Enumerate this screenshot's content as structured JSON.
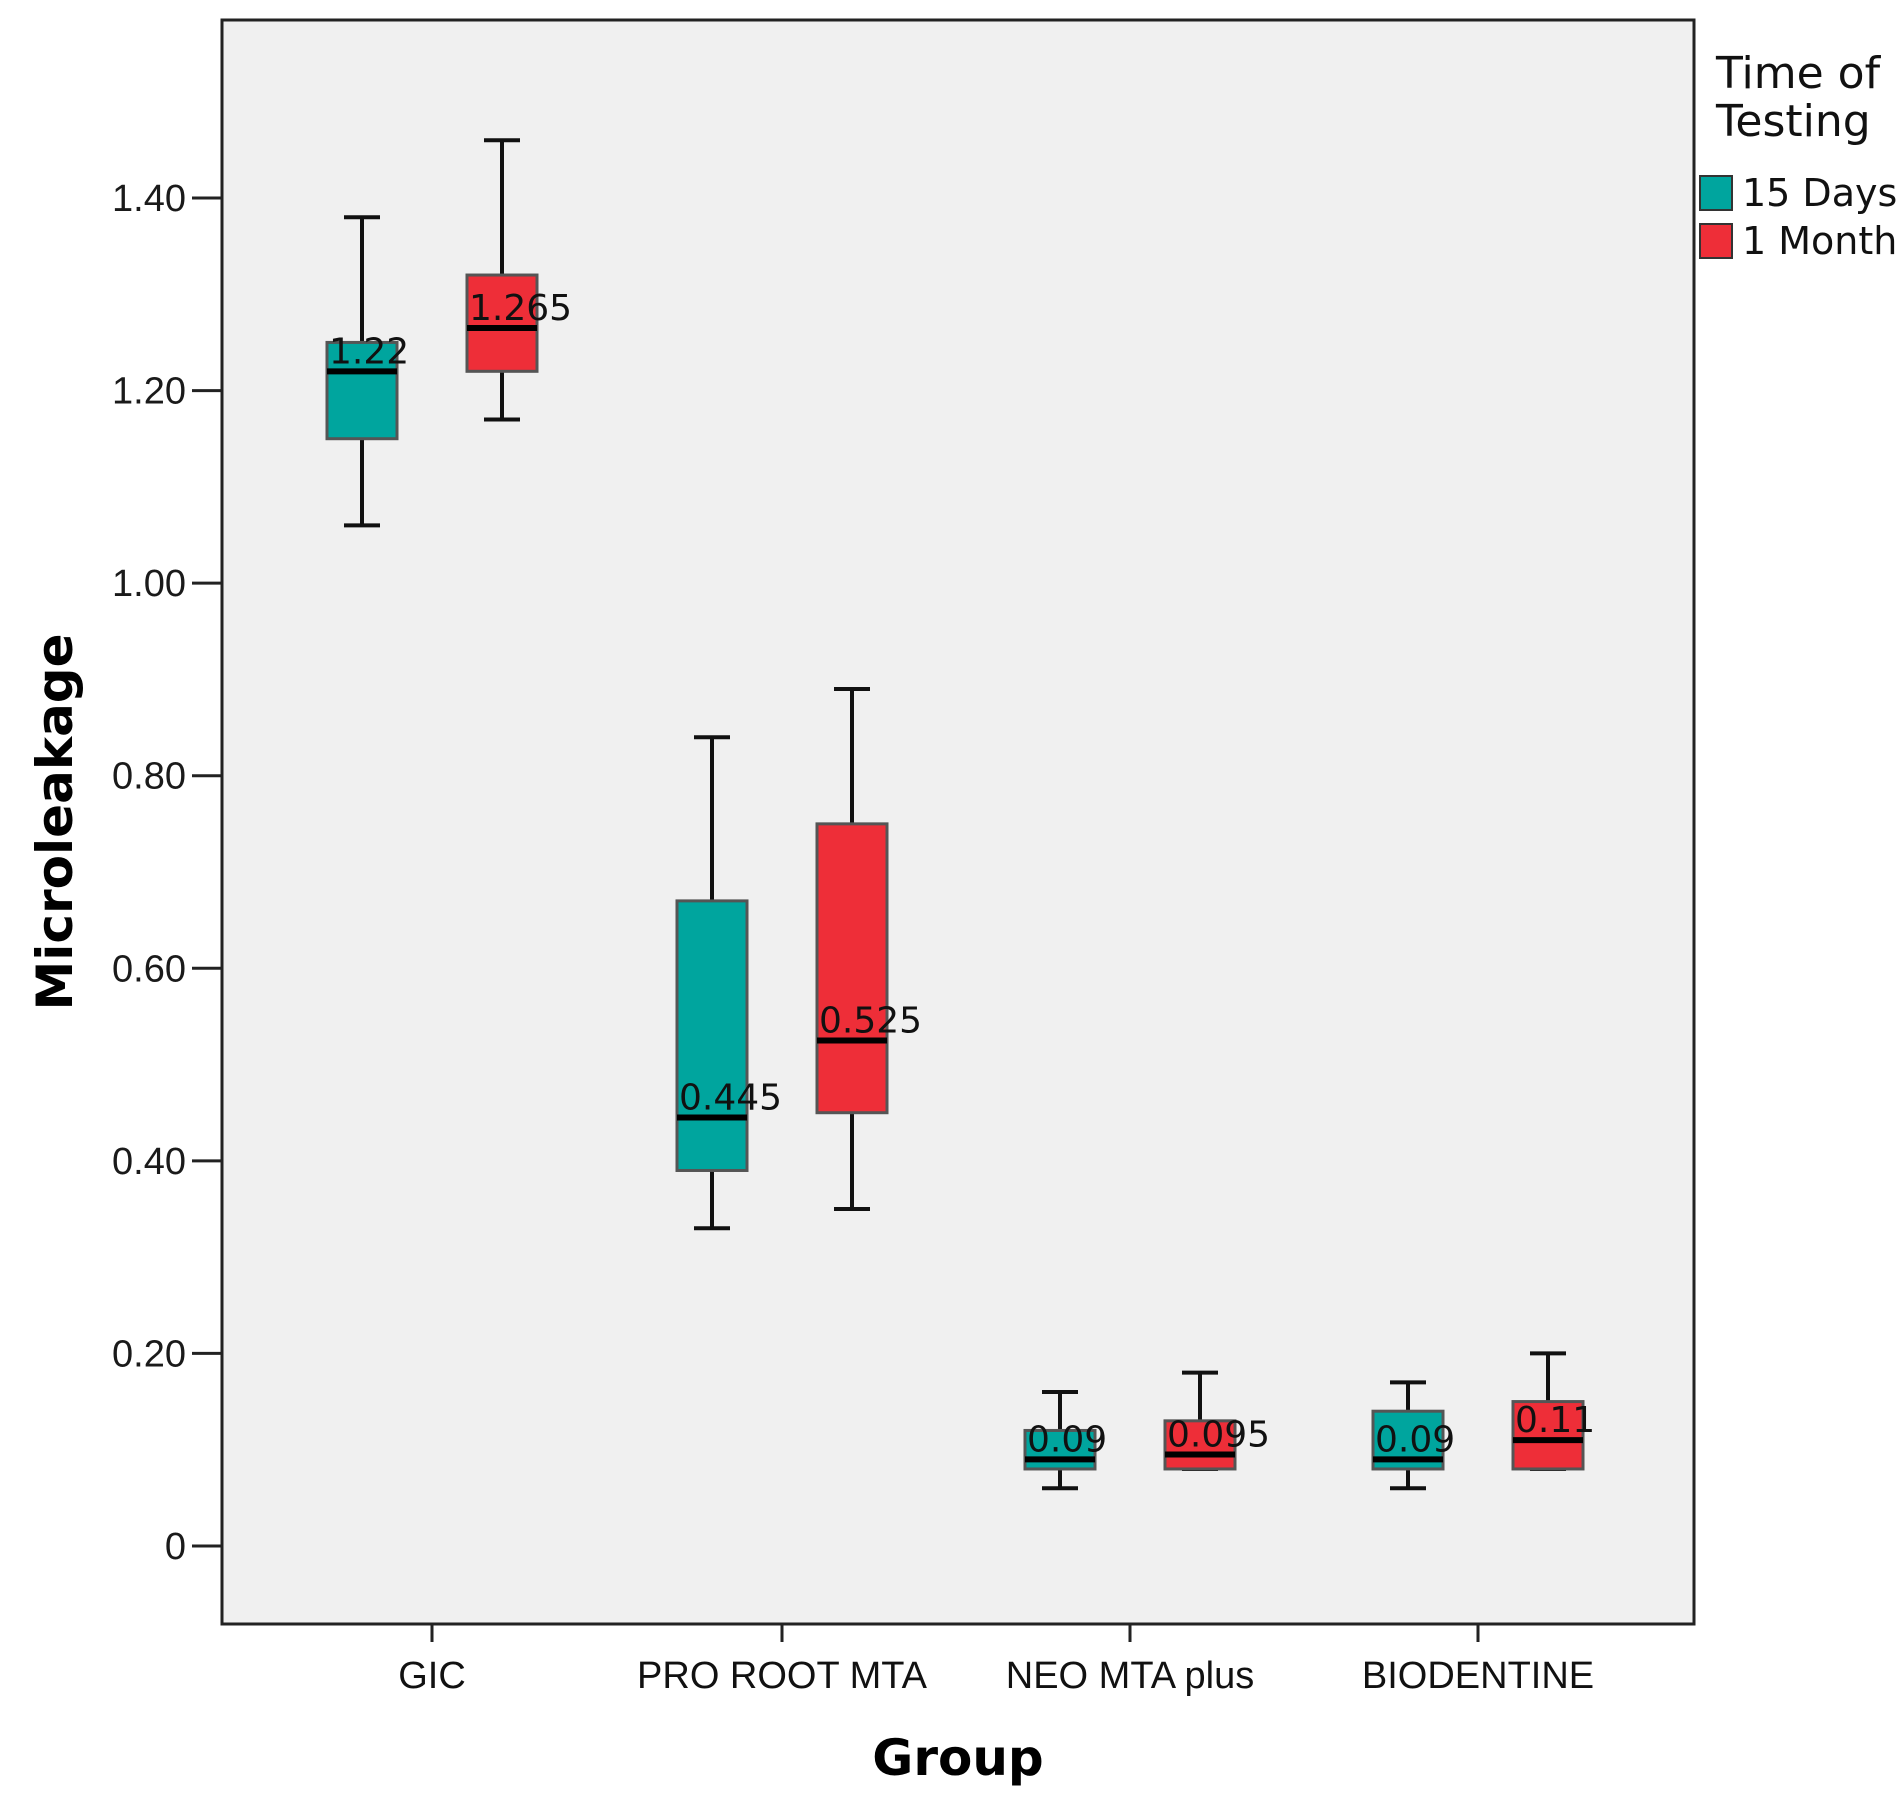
{
  "chart_data": {
    "type": "boxplot",
    "xlabel": "Group",
    "ylabel": "Microleakage",
    "ylim": [
      -0.08,
      1.58
    ],
    "yticks": [
      0,
      0.2,
      0.4,
      0.6,
      0.8,
      1.0,
      1.2,
      1.4
    ],
    "ytick_labels": [
      "0",
      "0.20",
      "0.40",
      "0.60",
      "0.80",
      "1.00",
      "1.20",
      "1.40"
    ],
    "categories": [
      "GIC",
      "PRO ROOT MTA",
      "NEO MTA plus",
      "BIODENTINE"
    ],
    "legend": {
      "title_lines": [
        "Time of",
        "Testing"
      ],
      "position": "right"
    },
    "series": [
      {
        "name": "15 Days",
        "color": "#00a59e",
        "boxes": [
          {
            "min": 1.06,
            "q1": 1.15,
            "median": 1.22,
            "q3": 1.25,
            "max": 1.38,
            "label": "1.22"
          },
          {
            "min": 0.33,
            "q1": 0.39,
            "median": 0.445,
            "q3": 0.67,
            "max": 0.84,
            "label": "0.445"
          },
          {
            "min": 0.06,
            "q1": 0.08,
            "median": 0.09,
            "q3": 0.12,
            "max": 0.16,
            "label": "0.09"
          },
          {
            "min": 0.06,
            "q1": 0.08,
            "median": 0.09,
            "q3": 0.14,
            "max": 0.17,
            "label": "0.09"
          }
        ]
      },
      {
        "name": "1 Month",
        "color": "#ee2e38",
        "boxes": [
          {
            "min": 1.17,
            "q1": 1.22,
            "median": 1.265,
            "q3": 1.32,
            "max": 1.46,
            "label": "1.265"
          },
          {
            "min": 0.35,
            "q1": 0.45,
            "median": 0.525,
            "q3": 0.75,
            "max": 0.89,
            "label": "0.525"
          },
          {
            "min": 0.08,
            "q1": 0.08,
            "median": 0.095,
            "q3": 0.13,
            "max": 0.18,
            "label": "0.095"
          },
          {
            "min": 0.08,
            "q1": 0.08,
            "median": 0.11,
            "q3": 0.15,
            "max": 0.2,
            "label": "0.11"
          }
        ]
      }
    ]
  }
}
